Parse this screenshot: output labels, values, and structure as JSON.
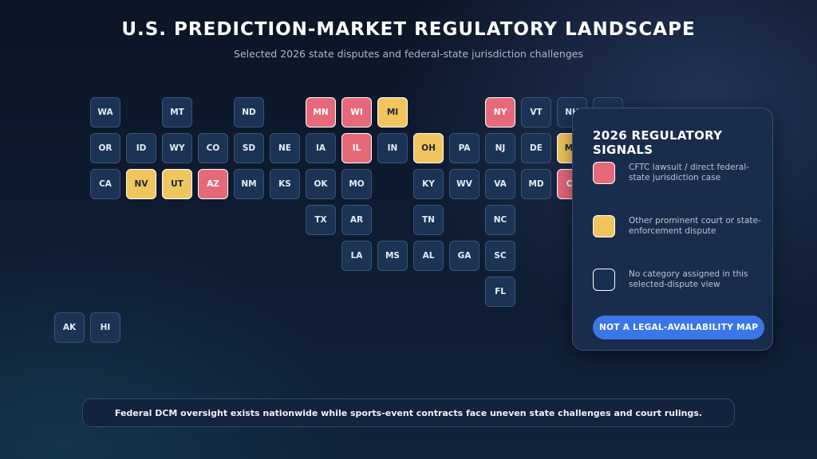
{
  "title": "U.S. PREDICTION-MARKET REGULATORY LANDSCAPE",
  "subtitle": "Selected 2026 state disputes and federal-state jurisdiction challenges",
  "map": {
    "states": [
      {
        "code": "WA",
        "row": 0,
        "col": 1,
        "category": "none"
      },
      {
        "code": "MT",
        "row": 0,
        "col": 3,
        "category": "none"
      },
      {
        "code": "ND",
        "row": 0,
        "col": 5,
        "category": "none"
      },
      {
        "code": "MN",
        "row": 0,
        "col": 7,
        "category": "federal"
      },
      {
        "code": "WI",
        "row": 0,
        "col": 8,
        "category": "federal"
      },
      {
        "code": "MI",
        "row": 0,
        "col": 9,
        "category": "dispute"
      },
      {
        "code": "NY",
        "row": 0,
        "col": 12,
        "category": "federal"
      },
      {
        "code": "VT",
        "row": 0,
        "col": 13,
        "category": "none"
      },
      {
        "code": "NH",
        "row": 0,
        "col": 14,
        "category": "none"
      },
      {
        "code": "ME",
        "row": 0,
        "col": 15,
        "category": "none"
      },
      {
        "code": "OR",
        "row": 1,
        "col": 1,
        "category": "none"
      },
      {
        "code": "ID",
        "row": 1,
        "col": 2,
        "category": "none"
      },
      {
        "code": "WY",
        "row": 1,
        "col": 3,
        "category": "none"
      },
      {
        "code": "CO",
        "row": 1,
        "col": 4,
        "category": "none"
      },
      {
        "code": "SD",
        "row": 1,
        "col": 5,
        "category": "none"
      },
      {
        "code": "NE",
        "row": 1,
        "col": 6,
        "category": "none"
      },
      {
        "code": "IA",
        "row": 1,
        "col": 7,
        "category": "none"
      },
      {
        "code": "IL",
        "row": 1,
        "col": 8,
        "category": "federal"
      },
      {
        "code": "IN",
        "row": 1,
        "col": 9,
        "category": "none"
      },
      {
        "code": "OH",
        "row": 1,
        "col": 10,
        "category": "dispute"
      },
      {
        "code": "PA",
        "row": 1,
        "col": 11,
        "category": "none"
      },
      {
        "code": "NJ",
        "row": 1,
        "col": 12,
        "category": "none"
      },
      {
        "code": "DE",
        "row": 1,
        "col": 13,
        "category": "none"
      },
      {
        "code": "MA",
        "row": 1,
        "col": 14,
        "category": "dispute"
      },
      {
        "code": "CA",
        "row": 2,
        "col": 1,
        "category": "none"
      },
      {
        "code": "NV",
        "row": 2,
        "col": 2,
        "category": "dispute"
      },
      {
        "code": "UT",
        "row": 2,
        "col": 3,
        "category": "dispute"
      },
      {
        "code": "AZ",
        "row": 2,
        "col": 4,
        "category": "federal"
      },
      {
        "code": "NM",
        "row": 2,
        "col": 5,
        "category": "none"
      },
      {
        "code": "KS",
        "row": 2,
        "col": 6,
        "category": "none"
      },
      {
        "code": "OK",
        "row": 2,
        "col": 7,
        "category": "none"
      },
      {
        "code": "MO",
        "row": 2,
        "col": 8,
        "category": "none"
      },
      {
        "code": "KY",
        "row": 2,
        "col": 10,
        "category": "none"
      },
      {
        "code": "WV",
        "row": 2,
        "col": 11,
        "category": "none"
      },
      {
        "code": "VA",
        "row": 2,
        "col": 12,
        "category": "none"
      },
      {
        "code": "MD",
        "row": 2,
        "col": 13,
        "category": "none"
      },
      {
        "code": "CT",
        "row": 2,
        "col": 14,
        "category": "federal"
      },
      {
        "code": "TX",
        "row": 3,
        "col": 7,
        "category": "none"
      },
      {
        "code": "AR",
        "row": 3,
        "col": 8,
        "category": "none"
      },
      {
        "code": "TN",
        "row": 3,
        "col": 10,
        "category": "none"
      },
      {
        "code": "NC",
        "row": 3,
        "col": 12,
        "category": "none"
      },
      {
        "code": "LA",
        "row": 4,
        "col": 8,
        "category": "none"
      },
      {
        "code": "MS",
        "row": 4,
        "col": 9,
        "category": "none"
      },
      {
        "code": "AL",
        "row": 4,
        "col": 10,
        "category": "none"
      },
      {
        "code": "GA",
        "row": 4,
        "col": 11,
        "category": "none"
      },
      {
        "code": "SC",
        "row": 4,
        "col": 12,
        "category": "none"
      },
      {
        "code": "FL",
        "row": 5,
        "col": 12,
        "category": "none"
      },
      {
        "code": "AK",
        "row": 6,
        "col": 0,
        "category": "none"
      },
      {
        "code": "HI",
        "row": 6,
        "col": 1,
        "category": "none"
      }
    ]
  },
  "legend": {
    "title": "2026 REGULATORY SIGNALS",
    "items": [
      {
        "category": "federal",
        "label": "CFTC lawsuit / direct federal-state jurisdiction case",
        "color": "#e6697a"
      },
      {
        "category": "dispute",
        "label": "Other prominent court or state-enforcement dispute",
        "color": "#f1c55e"
      },
      {
        "category": "none",
        "label": "No category assigned in this selected-dispute view",
        "color": "#1b3050"
      }
    ],
    "badge": "NOT A LEGAL-AVAILABILITY MAP"
  },
  "footer": "Federal DCM oversight exists nationwide while sports-event contracts face uneven state challenges and court rulings."
}
